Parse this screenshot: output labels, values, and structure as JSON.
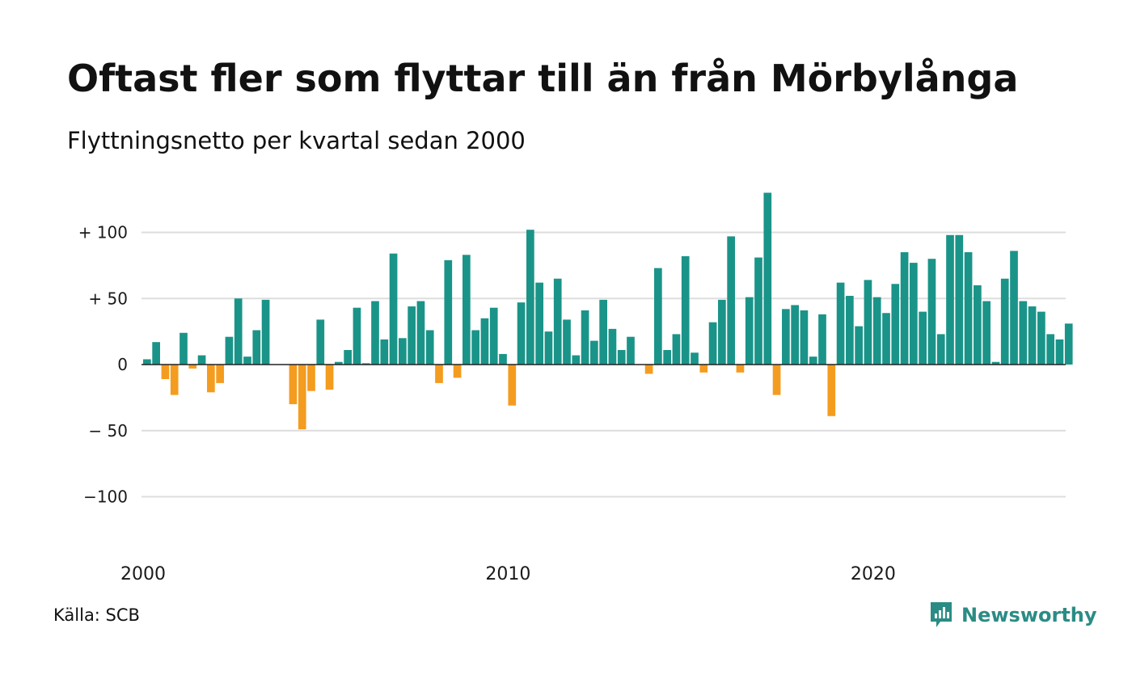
{
  "title": "Oftast fler som flyttar till än från Mörbylånga",
  "subtitle": "Flyttningsnetto per kvartal sedan 2000",
  "source": "Källa: SCB",
  "brand": {
    "name": "Newsworthy",
    "icon": "newsworthy-logo-icon",
    "color": "#2a8c85"
  },
  "colors": {
    "positive": "#1a9488",
    "negative": "#f49c1f",
    "grid": "#dddddd",
    "axis": "#222222"
  },
  "chart_data": {
    "type": "bar",
    "title": "Oftast fler som flyttar till än från Mörbylånga",
    "subtitle": "Flyttningsnetto per kvartal sedan 2000",
    "xlabel": "",
    "ylabel": "",
    "ylim": [
      -140,
      135
    ],
    "yticks": [
      {
        "value": 100,
        "label": "+ 100"
      },
      {
        "value": 50,
        "label": "+  50"
      },
      {
        "value": 0,
        "label": "0"
      },
      {
        "value": -50,
        "label": "− 50"
      },
      {
        "value": -100,
        "label": "−100"
      }
    ],
    "xticks": [
      {
        "year": 2000,
        "label": "2000"
      },
      {
        "year": 2010,
        "label": "2010"
      },
      {
        "year": 2020,
        "label": "2020"
      }
    ],
    "grid": true,
    "legend": "none",
    "categories": [
      "2000K1",
      "2000K2",
      "2000K3",
      "2000K4",
      "2001K1",
      "2001K2",
      "2001K3",
      "2001K4",
      "2002K1",
      "2002K2",
      "2002K3",
      "2002K4",
      "2003K1",
      "2003K2",
      "2003K3",
      "2003K4",
      "2004K1",
      "2004K2",
      "2004K3",
      "2004K4",
      "2005K1",
      "2005K2",
      "2005K3",
      "2005K4",
      "2006K1",
      "2006K2",
      "2006K3",
      "2006K4",
      "2007K1",
      "2007K2",
      "2007K3",
      "2007K4",
      "2008K1",
      "2008K2",
      "2008K3",
      "2008K4",
      "2009K1",
      "2009K2",
      "2009K3",
      "2009K4",
      "2010K1",
      "2010K2",
      "2010K3",
      "2010K4",
      "2011K1",
      "2011K2",
      "2011K3",
      "2011K4",
      "2012K1",
      "2012K2",
      "2012K3",
      "2012K4",
      "2013K1",
      "2013K2",
      "2013K3",
      "2013K4",
      "2014K1",
      "2014K2",
      "2014K3",
      "2014K4",
      "2015K1",
      "2015K2",
      "2015K3",
      "2015K4",
      "2016K1",
      "2016K2",
      "2016K3",
      "2016K4",
      "2017K1",
      "2017K2",
      "2017K3",
      "2017K4",
      "2018K1",
      "2018K2",
      "2018K3",
      "2018K4",
      "2019K1",
      "2019K2",
      "2019K3",
      "2019K4",
      "2020K1",
      "2020K2",
      "2020K3",
      "2020K4",
      "2021K1",
      "2021K2",
      "2021K3",
      "2021K4",
      "2022K1",
      "2022K2",
      "2022K3",
      "2022K4",
      "2023K1",
      "2023K2",
      "2023K3",
      "2023K4",
      "2024K1",
      "2024K2",
      "2024K3",
      "2024K4",
      "2025K1",
      "2025K2",
      "2025K3",
      "2025K4"
    ],
    "values": [
      4,
      17,
      -11,
      -23,
      24,
      -3,
      7,
      -21,
      -14,
      21,
      50,
      6,
      26,
      49,
      0,
      0,
      -30,
      -49,
      -20,
      34,
      -19,
      2,
      11,
      43,
      1,
      48,
      19,
      84,
      20,
      44,
      48,
      26,
      -14,
      79,
      -10,
      83,
      26,
      35,
      43,
      8,
      -31,
      47,
      102,
      62,
      25,
      65,
      34,
      7,
      41,
      18,
      49,
      27,
      11,
      21,
      0,
      -7,
      73,
      11,
      23,
      82,
      9,
      -6,
      32,
      49,
      97,
      -6,
      51,
      81,
      130,
      -23,
      42,
      45,
      41,
      6,
      38,
      -39,
      62,
      52,
      29,
      64,
      51,
      39,
      61,
      85,
      77,
      40,
      80,
      23,
      98,
      98,
      85,
      60,
      48,
      2,
      65,
      86,
      48,
      44,
      40,
      23,
      19,
      31,
      0,
      0
    ]
  }
}
